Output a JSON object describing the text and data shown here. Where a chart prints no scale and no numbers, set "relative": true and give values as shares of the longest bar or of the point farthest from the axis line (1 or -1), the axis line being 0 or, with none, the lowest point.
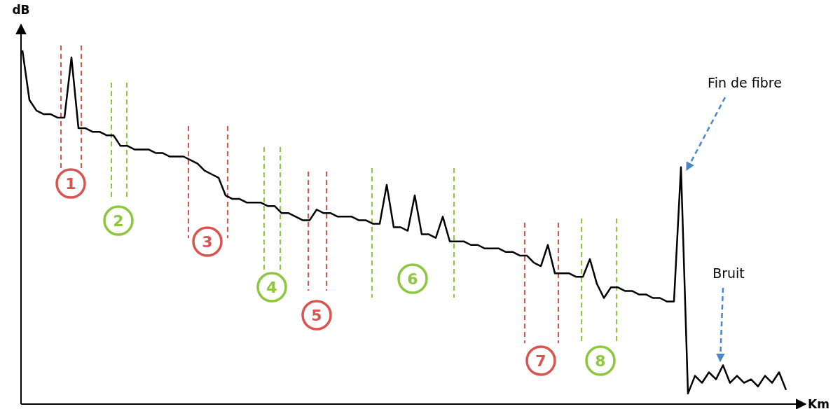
{
  "chart_data": {
    "type": "line",
    "relative": true,
    "xlabel": "Km",
    "ylabel": "dB",
    "marker": "none",
    "line_style": "solid",
    "categories": [
      null,
      null,
      null,
      null,
      null,
      null,
      null,
      null,
      null,
      null,
      null,
      null,
      null,
      null,
      null,
      null,
      null,
      null,
      null,
      null,
      null,
      null,
      null,
      null,
      null,
      null,
      null,
      null,
      null,
      null,
      null,
      null,
      null,
      null,
      null,
      null,
      null,
      null,
      null,
      null,
      null,
      null,
      null,
      null,
      null,
      null,
      null,
      null,
      null,
      null,
      null,
      null,
      null,
      null,
      null,
      null,
      null,
      null,
      null,
      null,
      null,
      null,
      null,
      null,
      null,
      null,
      null,
      null,
      null,
      null,
      null,
      null,
      null,
      null,
      null,
      null,
      null,
      null,
      null,
      null,
      null,
      null,
      null,
      null,
      null,
      null,
      null,
      null,
      null,
      null,
      null,
      null,
      null,
      null,
      null,
      null,
      null,
      null,
      null,
      null,
      null,
      null,
      null,
      null,
      null,
      null,
      null,
      null,
      null,
      null
    ],
    "series": [
      {
        "color": "#000000",
        "values": [
          1.0,
          0.86,
          0.83,
          0.82,
          0.82,
          0.81,
          0.81,
          0.98,
          0.78,
          0.78,
          0.77,
          0.77,
          0.76,
          0.76,
          0.73,
          0.73,
          0.72,
          0.72,
          0.72,
          0.71,
          0.71,
          0.7,
          0.7,
          0.7,
          0.69,
          0.68,
          0.66,
          0.65,
          0.64,
          0.59,
          0.58,
          0.58,
          0.57,
          0.57,
          0.57,
          0.56,
          0.56,
          0.54,
          0.54,
          0.53,
          0.52,
          0.52,
          0.55,
          0.54,
          0.54,
          0.53,
          0.53,
          0.53,
          0.52,
          0.52,
          0.51,
          0.51,
          0.62,
          0.5,
          0.5,
          0.49,
          0.59,
          0.48,
          0.48,
          0.47,
          0.53,
          0.46,
          0.46,
          0.46,
          0.45,
          0.45,
          0.44,
          0.44,
          0.44,
          0.43,
          0.43,
          0.42,
          0.42,
          0.4,
          0.39,
          0.45,
          0.37,
          0.37,
          0.37,
          0.36,
          0.36,
          0.41,
          0.34,
          0.3,
          0.33,
          0.33,
          0.32,
          0.32,
          0.31,
          0.31,
          0.3,
          0.3,
          0.29,
          0.29,
          0.67,
          0.03,
          0.08,
          0.06,
          0.09,
          0.07,
          0.11,
          0.06,
          0.08,
          0.06,
          0.07,
          0.05,
          0.08,
          0.06,
          0.09,
          0.04
        ]
      }
    ],
    "annotations": [
      "1",
      "2",
      "3",
      "4",
      "5",
      "6",
      "7",
      "8",
      "Fin de fibre",
      "Bruit"
    ]
  }
}
